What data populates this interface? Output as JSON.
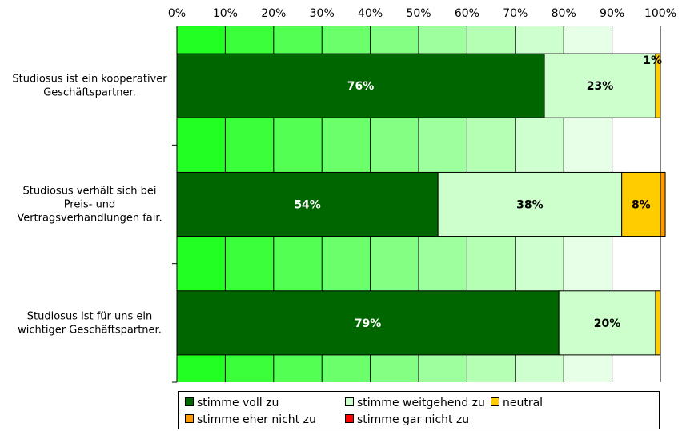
{
  "chart_data": {
    "type": "bar",
    "orientation": "horizontal",
    "stacked": true,
    "x_ticks": [
      "0%",
      "10%",
      "20%",
      "30%",
      "40%",
      "50%",
      "60%",
      "70%",
      "80%",
      "90%",
      "100%"
    ],
    "xlim": [
      0,
      100
    ],
    "categories": [
      "Studiosus ist ein kooperativer Geschäftspartner.",
      "Studiosus verhält sich bei Preis- und Vertragsverhandlungen fair.",
      "Studiosus ist für uns ein wichtiger Geschäftspartner."
    ],
    "category_lines": [
      [
        "Studiosus ist ein kooperativer",
        "Geschäftspartner."
      ],
      [
        "Studiosus verhält sich bei",
        "Preis- und",
        "Vertragsverhandlungen fair."
      ],
      [
        "Studiosus ist für uns ein",
        "wichtiger Geschäftspartner."
      ]
    ],
    "series": [
      {
        "name": "stimme voll zu",
        "color": "#006600",
        "values": [
          76,
          54,
          79
        ],
        "labels": [
          "76%",
          "54%",
          "79%"
        ]
      },
      {
        "name": "stimme weitgehend zu",
        "color": "#CCFFCC",
        "values": [
          23,
          38,
          20
        ],
        "labels": [
          "23%",
          "38%",
          "20%"
        ]
      },
      {
        "name": "neutral",
        "color": "#FFCC00",
        "values": [
          1,
          8,
          1
        ],
        "labels": [
          "1%",
          "8%",
          ""
        ]
      },
      {
        "name": "stimme eher nicht zu",
        "color": "#FF9900",
        "values": [
          0,
          1,
          0
        ],
        "labels": [
          "",
          "",
          ""
        ]
      },
      {
        "name": "stimme gar nicht zu",
        "color": "#FF0000",
        "values": [
          0,
          0,
          0
        ],
        "labels": [
          "",
          "",
          ""
        ]
      }
    ],
    "background_gradient": [
      "#22FF22",
      "#FFFFFF"
    ],
    "legend_position": "bottom",
    "grid": true
  }
}
